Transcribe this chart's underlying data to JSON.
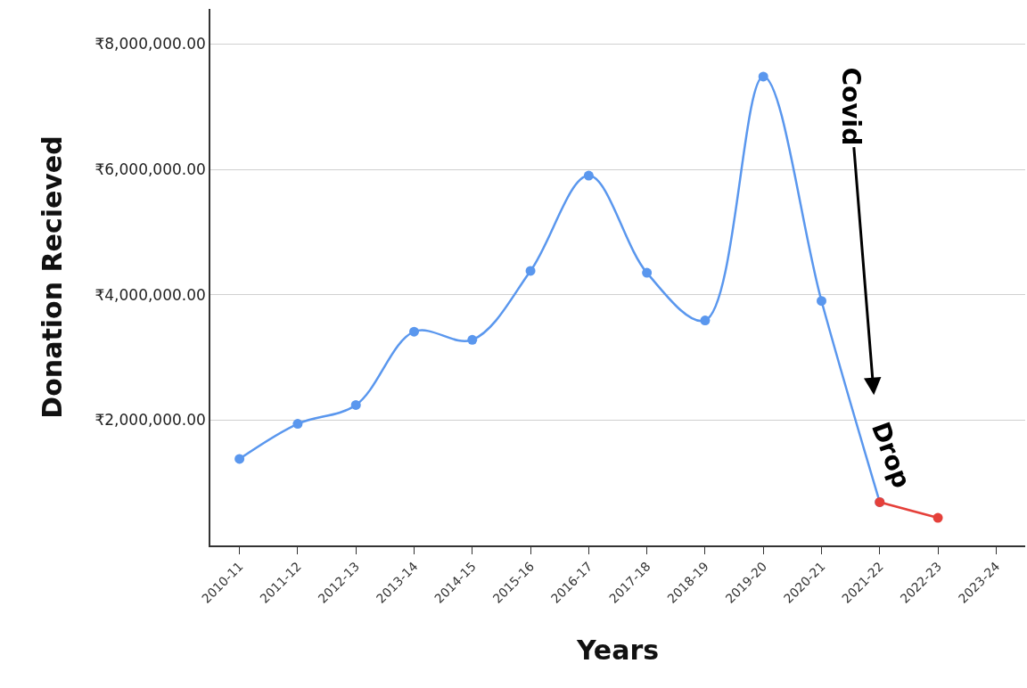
{
  "chart_data": {
    "type": "line",
    "xlabel": "Years",
    "ylabel": "Donation Recieved",
    "categories": [
      "2010-11",
      "2011-12",
      "2012-13",
      "2013-14",
      "2014-15",
      "2015-16",
      "2016-17",
      "2017-18",
      "2018-19",
      "2019-20",
      "2020-21",
      "2021-22",
      "2022-23",
      "2023-24"
    ],
    "series": [
      {
        "color": "#5a97ee",
        "values": [
          1380000,
          1940000,
          2240000,
          3410000,
          3280000,
          4380000,
          5900000,
          4350000,
          3590000,
          7480000,
          3900000,
          690000,
          null,
          null
        ]
      },
      {
        "color": "#e5403a",
        "values": [
          null,
          null,
          null,
          null,
          null,
          null,
          null,
          null,
          null,
          null,
          null,
          690000,
          440000,
          null
        ]
      }
    ],
    "ylim": [
      0,
      8560000
    ],
    "yticks": [
      {
        "value": 2000000,
        "label": "₹2,000,000.00"
      },
      {
        "value": 4000000,
        "label": "₹4,000,000.00"
      },
      {
        "value": 6000000,
        "label": "₹6,000,000.00"
      },
      {
        "value": 8000000,
        "label": "₹8,000,000.00"
      }
    ],
    "grid": "y",
    "marker": "circle",
    "line_style": "solid",
    "annotations": [
      "Covid",
      "Drop"
    ]
  }
}
